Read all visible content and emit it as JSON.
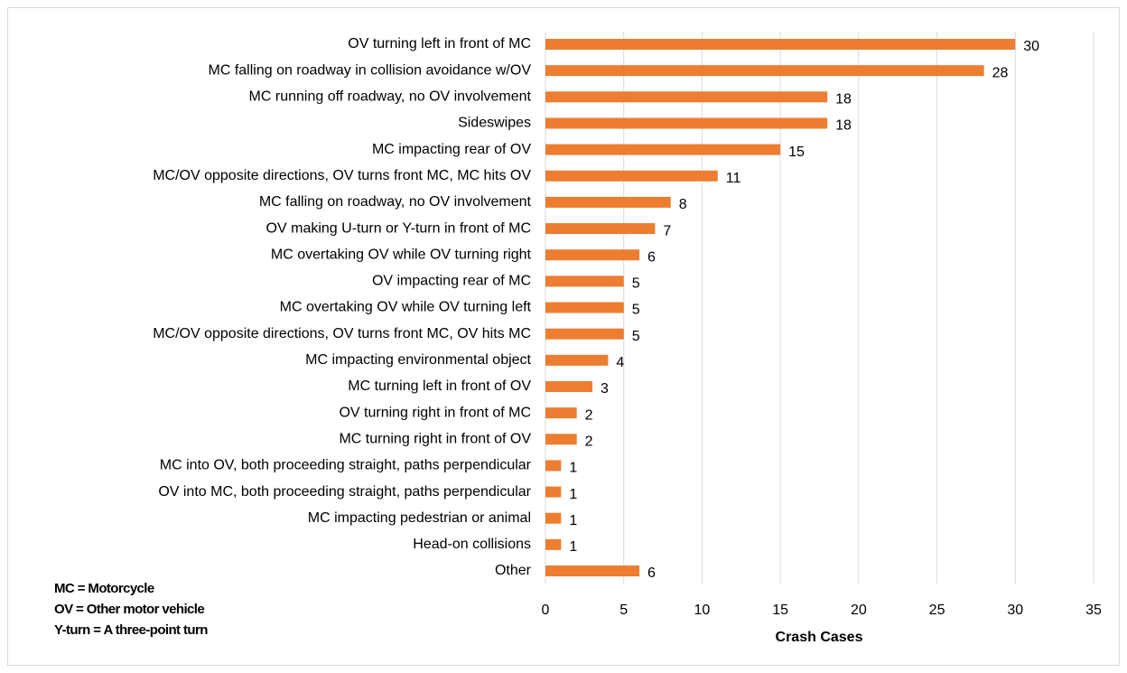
{
  "chart_data": {
    "type": "bar",
    "orientation": "horizontal",
    "categories": [
      "OV turning left in front of MC",
      "MC falling on roadway in collision avoidance w/OV",
      "MC running off roadway, no OV involvement",
      "Sideswipes",
      "MC impacting rear of OV",
      "MC/OV opposite directions, OV turns front MC, MC hits OV",
      "MC falling on roadway, no OV involvement",
      "OV making U-turn or Y-turn in front of MC",
      "MC overtaking OV while OV turning right",
      "OV impacting rear of MC",
      "MC overtaking OV while OV turning left",
      "MC/OV opposite directions, OV turns front MC, OV hits MC",
      "MC impacting environmental object",
      "MC turning left in front of OV",
      "OV turning right in front of MC",
      "MC turning right in front of OV",
      "MC into OV, both proceeding straight, paths perpendicular",
      "OV into MC, both proceeding straight, paths perpendicular",
      "MC impacting pedestrian or animal",
      "Head-on collisions",
      "Other"
    ],
    "values": [
      30,
      28,
      18,
      18,
      15,
      11,
      8,
      7,
      6,
      5,
      5,
      5,
      4,
      3,
      2,
      2,
      1,
      1,
      1,
      1,
      6
    ],
    "color": "#ed7d31",
    "xlabel": "Crash Cases",
    "xlim": [
      0,
      35
    ],
    "xticks": [
      0,
      5,
      10,
      15,
      20,
      25,
      30,
      35
    ],
    "grid": true,
    "notes": [
      "MC = Motorcycle",
      "OV = Other motor vehicle",
      "Y-turn = A three-point turn"
    ]
  }
}
